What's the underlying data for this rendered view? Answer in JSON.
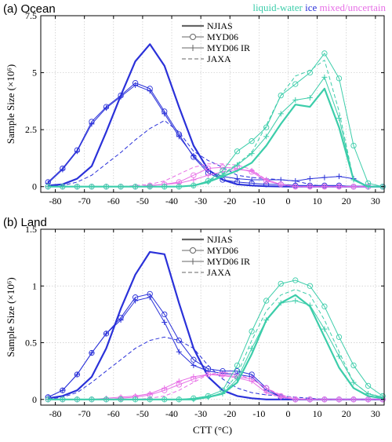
{
  "phases": {
    "liquid": {
      "label": "liquid-water",
      "color": "#3ccdaa"
    },
    "ice": {
      "label": "ice",
      "color": "#2a31d9"
    },
    "mixed": {
      "label": "mixed/uncertain",
      "color": "#e76fe6"
    }
  },
  "legend": {
    "njias": "NJIAS",
    "myd06": "MYD06",
    "myd06ir": "MYD06 IR",
    "jaxa": "JAXA"
  },
  "chart_data": [
    {
      "type": "line",
      "title": "(a) Ocean",
      "xlabel": "",
      "ylabel": "Sample Size (×10⁶)",
      "xlim": [
        -85,
        33
      ],
      "ylim": [
        -0.25,
        7.5
      ],
      "xticks": [
        "-80",
        "-70",
        "-60",
        "-50",
        "-40",
        "-30",
        "-20",
        "-10",
        "0",
        "10",
        "20",
        "30"
      ],
      "yticks": [
        "0",
        "2.5",
        "5",
        "7.5"
      ],
      "grid": true,
      "legend_position": "top-center",
      "x": [
        -82.5,
        -77.5,
        -72.5,
        -67.5,
        -62.5,
        -57.5,
        -52.5,
        -47.5,
        -42.5,
        -37.5,
        -32.5,
        -27.5,
        -22.5,
        -17.5,
        -12.5,
        -7.5,
        -2.5,
        2.5,
        7.5,
        12.5,
        17.5,
        22.5,
        27.5,
        32.5
      ],
      "series": [
        {
          "phase": "ice",
          "product": "NJIAS",
          "values": [
            0.05,
            0.1,
            0.35,
            0.9,
            2.4,
            4.0,
            5.5,
            6.25,
            5.3,
            3.5,
            1.8,
            0.75,
            0.3,
            0.1,
            0.05,
            0.02,
            0.01,
            0.0,
            0.0,
            0.0,
            0.0,
            0.0,
            0.0,
            0.0
          ]
        },
        {
          "phase": "ice",
          "product": "MYD06",
          "values": [
            0.2,
            0.8,
            1.6,
            2.85,
            3.5,
            4.0,
            4.55,
            4.3,
            3.3,
            2.3,
            1.3,
            0.6,
            0.3,
            0.2,
            0.15,
            0.1,
            0.1,
            0.05,
            0.05,
            0.05,
            0.05,
            0.0,
            0.0,
            0.0
          ]
        },
        {
          "phase": "ice",
          "product": "MYD06 IR",
          "values": [
            0.15,
            0.75,
            1.55,
            2.75,
            3.45,
            3.95,
            4.45,
            4.2,
            3.2,
            2.2,
            1.35,
            0.7,
            0.45,
            0.35,
            0.3,
            0.3,
            0.3,
            0.25,
            0.35,
            0.4,
            0.45,
            0.35,
            0.0,
            0.0
          ]
        },
        {
          "phase": "ice",
          "product": "JAXA",
          "values": [
            0.0,
            0.05,
            0.2,
            0.5,
            1.0,
            1.5,
            2.05,
            2.55,
            2.9,
            2.4,
            1.55,
            1.15,
            0.85,
            0.5,
            0.4,
            0.35,
            0.3,
            0.25,
            0.1,
            0.0,
            0.0,
            0.0,
            0.0,
            0.0
          ]
        },
        {
          "phase": "mixed",
          "product": "MYD06",
          "values": [
            0.0,
            0.0,
            0.0,
            0.0,
            0.0,
            0.0,
            0.0,
            0.05,
            0.1,
            0.2,
            0.5,
            0.8,
            0.85,
            0.8,
            0.65,
            0.25,
            0.1,
            0.0,
            0.0,
            0.0,
            0.0,
            0.0,
            0.0,
            0.0
          ]
        },
        {
          "phase": "mixed",
          "product": "MYD06 IR",
          "values": [
            0.0,
            0.0,
            0.0,
            0.0,
            0.0,
            0.0,
            0.0,
            0.05,
            0.1,
            0.15,
            0.3,
            0.5,
            0.65,
            0.75,
            0.7,
            0.3,
            0.1,
            0.0,
            0.0,
            0.0,
            0.0,
            0.0,
            0.0,
            0.0
          ]
        },
        {
          "phase": "mixed",
          "product": "JAXA",
          "values": [
            0.0,
            0.0,
            0.0,
            0.0,
            0.0,
            0.0,
            0.05,
            0.1,
            0.25,
            0.55,
            0.85,
            1.0,
            1.0,
            0.95,
            0.75,
            0.3,
            0.1,
            0.0,
            0.0,
            0.0,
            0.0,
            0.0,
            0.0,
            0.0
          ]
        },
        {
          "phase": "liquid",
          "product": "NJIAS",
          "values": [
            0.0,
            0.0,
            0.0,
            0.0,
            0.0,
            0.0,
            0.0,
            0.0,
            0.0,
            0.0,
            0.05,
            0.2,
            0.45,
            0.7,
            1.05,
            1.8,
            2.75,
            3.6,
            3.5,
            4.3,
            2.6,
            0.3,
            0.0,
            0.0
          ]
        },
        {
          "phase": "liquid",
          "product": "MYD06",
          "values": [
            0.0,
            0.0,
            0.0,
            0.0,
            0.0,
            0.0,
            0.0,
            0.0,
            0.0,
            0.0,
            0.05,
            0.25,
            0.7,
            1.55,
            2.0,
            2.6,
            4.0,
            4.5,
            5.0,
            5.85,
            4.75,
            1.8,
            0.15,
            0.0
          ]
        },
        {
          "phase": "liquid",
          "product": "MYD06 IR",
          "values": [
            0.0,
            0.0,
            0.0,
            0.0,
            0.0,
            0.0,
            0.0,
            0.0,
            0.0,
            0.0,
            0.05,
            0.2,
            0.5,
            0.95,
            1.45,
            2.2,
            3.2,
            3.8,
            3.9,
            4.8,
            3.0,
            0.3,
            0.0,
            0.0
          ]
        },
        {
          "phase": "liquid",
          "product": "JAXA",
          "values": [
            0.0,
            0.0,
            0.0,
            0.0,
            0.0,
            0.0,
            0.0,
            0.0,
            0.0,
            0.0,
            0.05,
            0.25,
            0.55,
            1.0,
            1.5,
            2.7,
            4.0,
            4.85,
            5.1,
            5.55,
            3.3,
            0.3,
            0.0,
            0.0
          ]
        }
      ]
    },
    {
      "type": "line",
      "title": "(b) Land",
      "xlabel": "CTT (°C)",
      "ylabel": "Sample Size (×10⁶)",
      "xlim": [
        -85,
        33
      ],
      "ylim": [
        -0.05,
        1.5
      ],
      "xticks": [
        "-80",
        "-70",
        "-60",
        "-50",
        "-40",
        "-30",
        "-20",
        "-10",
        "0",
        "10",
        "20",
        "30"
      ],
      "yticks": [
        "0",
        "0.5",
        "1",
        "1.5"
      ],
      "grid": true,
      "legend_position": "top-center",
      "x": [
        -82.5,
        -77.5,
        -72.5,
        -67.5,
        -62.5,
        -57.5,
        -52.5,
        -47.5,
        -42.5,
        -37.5,
        -32.5,
        -27.5,
        -22.5,
        -17.5,
        -12.5,
        -7.5,
        -2.5,
        2.5,
        7.5,
        12.5,
        17.5,
        22.5,
        27.5,
        32.5
      ],
      "series": [
        {
          "phase": "ice",
          "product": "NJIAS",
          "values": [
            0.01,
            0.03,
            0.08,
            0.2,
            0.45,
            0.8,
            1.1,
            1.3,
            1.28,
            0.85,
            0.45,
            0.2,
            0.08,
            0.03,
            0.01,
            0.0,
            0.0,
            0.0,
            0.0,
            0.0,
            0.0,
            0.0,
            0.0,
            0.0
          ]
        },
        {
          "phase": "ice",
          "product": "MYD06",
          "values": [
            0.02,
            0.08,
            0.22,
            0.41,
            0.58,
            0.72,
            0.9,
            0.93,
            0.75,
            0.52,
            0.35,
            0.27,
            0.25,
            0.25,
            0.22,
            0.1,
            0.02,
            0.0,
            0.0,
            0.0,
            0.0,
            0.0,
            0.0,
            0.0
          ]
        },
        {
          "phase": "ice",
          "product": "MYD06 IR",
          "values": [
            0.02,
            0.08,
            0.22,
            0.41,
            0.58,
            0.7,
            0.87,
            0.9,
            0.68,
            0.42,
            0.3,
            0.25,
            0.23,
            0.22,
            0.2,
            0.08,
            0.02,
            0.0,
            0.0,
            0.0,
            0.0,
            0.0,
            0.0,
            0.0
          ]
        },
        {
          "phase": "ice",
          "product": "JAXA",
          "values": [
            0.0,
            0.02,
            0.06,
            0.15,
            0.25,
            0.35,
            0.45,
            0.52,
            0.55,
            0.52,
            0.45,
            0.3,
            0.18,
            0.1,
            0.06,
            0.04,
            0.03,
            0.02,
            0.01,
            0.0,
            0.0,
            0.0,
            0.0,
            0.0
          ]
        },
        {
          "phase": "mixed",
          "product": "MYD06",
          "values": [
            0.0,
            0.0,
            0.0,
            0.0,
            0.0,
            0.01,
            0.02,
            0.04,
            0.08,
            0.13,
            0.18,
            0.22,
            0.22,
            0.2,
            0.18,
            0.1,
            0.03,
            0.0,
            0.0,
            0.0,
            0.0,
            0.0,
            0.0,
            0.0
          ]
        },
        {
          "phase": "mixed",
          "product": "MYD06 IR",
          "values": [
            0.0,
            0.0,
            0.0,
            0.0,
            0.01,
            0.02,
            0.03,
            0.05,
            0.1,
            0.16,
            0.2,
            0.22,
            0.21,
            0.19,
            0.16,
            0.06,
            0.02,
            0.0,
            0.0,
            0.0,
            0.0,
            0.0,
            0.0,
            0.0
          ]
        },
        {
          "phase": "mixed",
          "product": "JAXA",
          "values": [
            0.0,
            0.0,
            0.0,
            0.0,
            0.0,
            0.0,
            0.0,
            0.01,
            0.03,
            0.08,
            0.15,
            0.22,
            0.24,
            0.22,
            0.18,
            0.1,
            0.04,
            0.01,
            0.0,
            0.0,
            0.0,
            0.0,
            0.0,
            0.0
          ]
        },
        {
          "phase": "liquid",
          "product": "NJIAS",
          "values": [
            0.0,
            0.0,
            0.0,
            0.0,
            0.0,
            0.0,
            0.0,
            0.0,
            0.0,
            0.0,
            0.0,
            0.02,
            0.05,
            0.15,
            0.4,
            0.7,
            0.85,
            0.92,
            0.82,
            0.55,
            0.28,
            0.1,
            0.03,
            0.01
          ]
        },
        {
          "phase": "liquid",
          "product": "MYD06",
          "values": [
            0.0,
            0.0,
            0.0,
            0.0,
            0.0,
            0.0,
            0.0,
            0.0,
            0.0,
            0.0,
            0.01,
            0.03,
            0.08,
            0.3,
            0.6,
            0.87,
            1.02,
            1.05,
            1.0,
            0.82,
            0.55,
            0.3,
            0.12,
            0.03
          ]
        },
        {
          "phase": "liquid",
          "product": "MYD06 IR",
          "values": [
            0.0,
            0.0,
            0.0,
            0.0,
            0.0,
            0.0,
            0.0,
            0.0,
            0.0,
            0.0,
            0.0,
            0.02,
            0.05,
            0.18,
            0.45,
            0.7,
            0.85,
            0.87,
            0.83,
            0.62,
            0.38,
            0.15,
            0.05,
            0.02
          ]
        },
        {
          "phase": "liquid",
          "product": "JAXA",
          "values": [
            0.0,
            0.0,
            0.0,
            0.0,
            0.0,
            0.0,
            0.0,
            0.0,
            0.0,
            0.0,
            0.0,
            0.02,
            0.06,
            0.22,
            0.52,
            0.78,
            0.92,
            0.97,
            0.92,
            0.7,
            0.42,
            0.15,
            0.05,
            0.01
          ]
        }
      ]
    }
  ]
}
